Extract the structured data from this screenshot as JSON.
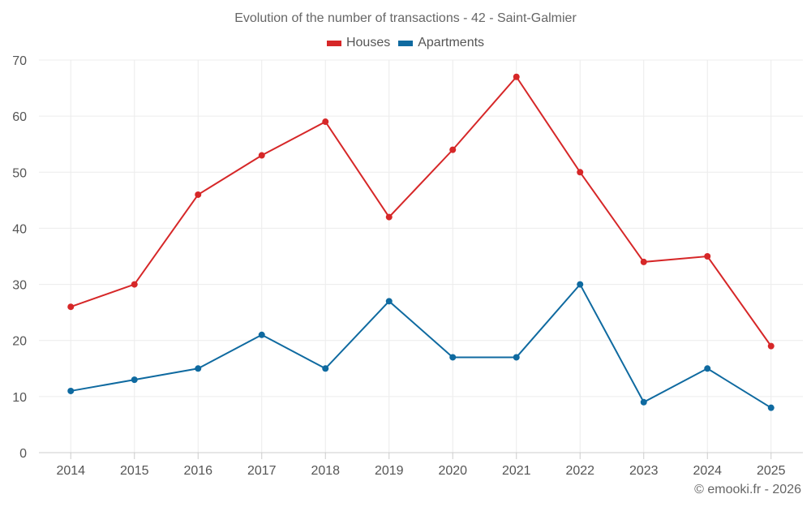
{
  "chart_data": {
    "type": "line",
    "title": "Evolution of the number of transactions - 42 - Saint-Galmier",
    "x": [
      "2014",
      "2015",
      "2016",
      "2017",
      "2018",
      "2019",
      "2020",
      "2021",
      "2022",
      "2023",
      "2024",
      "2025"
    ],
    "series": [
      {
        "name": "Houses",
        "color": "#d62728",
        "values": [
          26,
          30,
          46,
          53,
          59,
          42,
          54,
          67,
          50,
          34,
          35,
          19
        ]
      },
      {
        "name": "Apartments",
        "color": "#0f6aa0",
        "values": [
          11,
          13,
          15,
          21,
          15,
          27,
          17,
          17,
          30,
          9,
          15,
          8
        ]
      }
    ],
    "ylim": [
      0,
      70
    ],
    "yticks": [
      0,
      10,
      20,
      30,
      40,
      50,
      60,
      70
    ],
    "grid": true,
    "legend_position": "top-center",
    "xlabel": "",
    "ylabel": ""
  },
  "credit": "© emooki.fr - 2026"
}
